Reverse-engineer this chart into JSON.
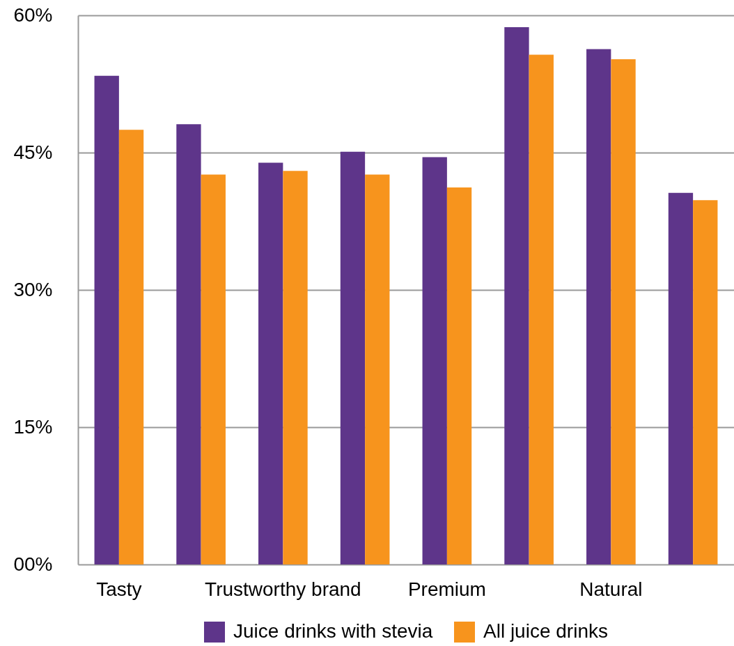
{
  "chart_data": {
    "type": "bar",
    "categories": [
      "Tasty",
      null,
      "Trustworthy brand",
      null,
      "Premium",
      null,
      "Natural",
      null
    ],
    "series": [
      {
        "name": "Juice drinks with stevia",
        "color": "#5e358a",
        "values": [
          53.4,
          48.1,
          43.9,
          45.1,
          44.5,
          58.7,
          56.3,
          40.6
        ]
      },
      {
        "name": "All juice drinks",
        "color": "#f7941d",
        "values": [
          47.5,
          42.6,
          43.0,
          42.6,
          41.2,
          55.7,
          55.2,
          39.8
        ]
      }
    ],
    "ylim": [
      0,
      60
    ],
    "yticks": [
      {
        "value": 0,
        "label": "00%"
      },
      {
        "value": 15,
        "label": "15%"
      },
      {
        "value": 30,
        "label": "30%"
      },
      {
        "value": 45,
        "label": "45%"
      },
      {
        "value": 60,
        "label": "60%"
      }
    ],
    "grid": "y",
    "legend": "bottom"
  }
}
